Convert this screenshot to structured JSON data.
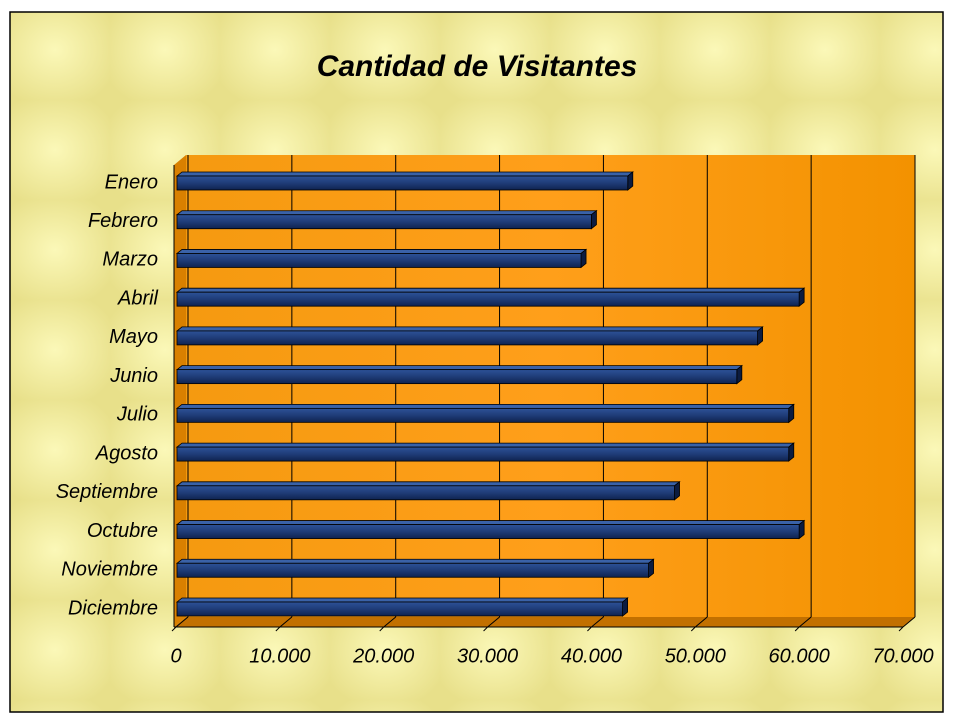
{
  "chart_data": {
    "type": "bar3d_horizontal",
    "title": "Cantidad de Visitantes",
    "categories": [
      "Enero",
      "Febrero",
      "Marzo",
      "Abril",
      "Mayo",
      "Junio",
      "Julio",
      "Agosto",
      "Septiembre",
      "Octubre",
      "Noviembre",
      "Diciembre"
    ],
    "values": [
      43500,
      40000,
      39000,
      60000,
      56000,
      54000,
      59000,
      59000,
      48000,
      60000,
      45500,
      43000
    ],
    "color": "#1f3c78",
    "xlim": [
      0,
      70000
    ],
    "xticks": [
      0,
      {
        "value": 10000,
        "label": "10.000"
      },
      {
        "value": 20000,
        "label": "20.000"
      },
      {
        "value": 30000,
        "label": "30.000"
      },
      {
        "value": 40000,
        "label": "40.000"
      },
      {
        "value": 50000,
        "label": "50.000"
      },
      {
        "value": 60000,
        "label": "60.000"
      },
      {
        "value": 70000,
        "label": "70.000"
      }
    ],
    "grid": true
  }
}
